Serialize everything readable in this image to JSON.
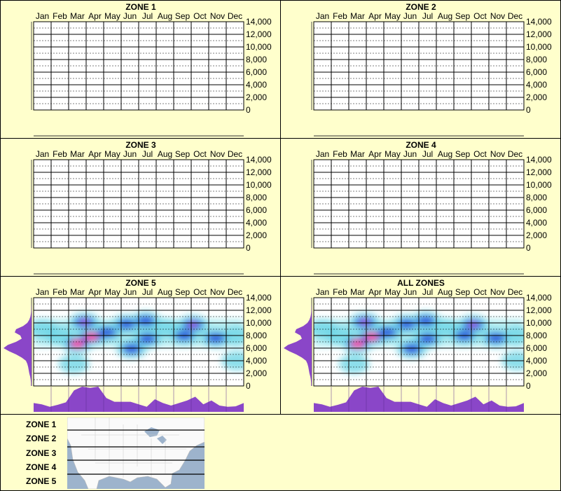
{
  "chart_data": [
    {
      "type": "heatmap",
      "title": "ZONE 1",
      "months": [
        "Jan",
        "Feb",
        "Mar",
        "Apr",
        "May",
        "Jun",
        "Jul",
        "Aug",
        "Sep",
        "Oct",
        "Nov",
        "Dec"
      ],
      "yticks": [
        "0",
        "2,000",
        "4,000",
        "6,000",
        "8,000",
        "10,000",
        "12,000",
        "14,000"
      ],
      "ylim": [
        0,
        14000
      ],
      "hotspots": [],
      "left_profile": [],
      "bottom_profile": []
    },
    {
      "type": "heatmap",
      "title": "ZONE 2",
      "months": [
        "Jan",
        "Feb",
        "Mar",
        "Apr",
        "May",
        "Jun",
        "Jul",
        "Aug",
        "Sep",
        "Oct",
        "Nov",
        "Dec"
      ],
      "yticks": [
        "0",
        "2,000",
        "4,000",
        "6,000",
        "8,000",
        "10,000",
        "12,000",
        "14,000"
      ],
      "ylim": [
        0,
        14000
      ],
      "hotspots": [],
      "left_profile": [],
      "bottom_profile": []
    },
    {
      "type": "heatmap",
      "title": "ZONE 3",
      "months": [
        "Jan",
        "Feb",
        "Mar",
        "Apr",
        "May",
        "Jun",
        "Jul",
        "Aug",
        "Sep",
        "Oct",
        "Nov",
        "Dec"
      ],
      "yticks": [
        "0",
        "2,000",
        "4,000",
        "6,000",
        "8,000",
        "10,000",
        "12,000",
        "14,000"
      ],
      "ylim": [
        0,
        14000
      ],
      "hotspots": [],
      "left_profile": [],
      "bottom_profile": []
    },
    {
      "type": "heatmap",
      "title": "ZONE 4",
      "months": [
        "Jan",
        "Feb",
        "Mar",
        "Apr",
        "May",
        "Jun",
        "Jul",
        "Aug",
        "Sep",
        "Oct",
        "Nov",
        "Dec"
      ],
      "yticks": [
        "0",
        "2,000",
        "4,000",
        "6,000",
        "8,000",
        "10,000",
        "12,000",
        "14,000"
      ],
      "ylim": [
        0,
        14000
      ],
      "hotspots": [],
      "left_profile": [],
      "bottom_profile": []
    },
    {
      "type": "heatmap",
      "title": "ZONE 5",
      "months": [
        "Jan",
        "Feb",
        "Mar",
        "Apr",
        "May",
        "Jun",
        "Jul",
        "Aug",
        "Sep",
        "Oct",
        "Nov",
        "Dec"
      ],
      "yticks": [
        "0",
        "2,000",
        "4,000",
        "6,000",
        "8,000",
        "10,000",
        "12,000",
        "14,000"
      ],
      "ylim": [
        0,
        14000
      ],
      "hotspots": [
        {
          "m": 2.9,
          "v": 10100,
          "i": 0.85
        },
        {
          "m": 2.5,
          "v": 6700,
          "i": 1.0
        },
        {
          "m": 3.3,
          "v": 7800,
          "i": 1.0
        },
        {
          "m": 9.1,
          "v": 9700,
          "i": 0.85
        },
        {
          "m": 10.4,
          "v": 7600,
          "i": 0.7
        },
        {
          "m": 6.4,
          "v": 10300,
          "i": 0.6
        },
        {
          "m": 5.6,
          "v": 5900,
          "i": 0.55
        },
        {
          "m": 5.3,
          "v": 9800,
          "i": 0.5
        },
        {
          "m": 8.6,
          "v": 8000,
          "i": 0.5
        },
        {
          "m": 4.2,
          "v": 8500,
          "i": 0.5
        },
        {
          "m": 1.5,
          "v": 8000,
          "i": 0.4
        },
        {
          "m": 7.5,
          "v": 9200,
          "i": 0.4
        },
        {
          "m": 11.6,
          "v": 8000,
          "i": 0.4
        },
        {
          "m": 0.5,
          "v": 9000,
          "i": 0.35
        },
        {
          "m": 11.6,
          "v": 4000,
          "i": 0.25
        },
        {
          "m": 2.3,
          "v": 3500,
          "i": 0.25
        },
        {
          "m": 6.5,
          "v": 7500,
          "i": 0.45
        }
      ],
      "left_profile": [
        0.02,
        0.02,
        0.03,
        0.05,
        0.08,
        0.1,
        0.12,
        0.15,
        0.2,
        0.35,
        0.55,
        0.8,
        1.0,
        0.85,
        0.55,
        0.35,
        0.4,
        0.6,
        0.55,
        0.3,
        0.15,
        0.08,
        0.04,
        0.02,
        0.01,
        0.01,
        0,
        0,
        0
      ],
      "bottom_profile": [
        0.35,
        0.3,
        0.2,
        0.28,
        0.38,
        0.85,
        1.0,
        0.95,
        1.0,
        0.55,
        0.4,
        0.4,
        0.4,
        0.3,
        0.2,
        0.5,
        0.35,
        0.25,
        0.35,
        0.45,
        0.6,
        0.3,
        0.45,
        0.25,
        0.2,
        0.22,
        0.35
      ]
    },
    {
      "type": "heatmap",
      "title": "ALL ZONES",
      "months": [
        "Jan",
        "Feb",
        "Mar",
        "Apr",
        "May",
        "Jun",
        "Jul",
        "Aug",
        "Sep",
        "Oct",
        "Nov",
        "Dec"
      ],
      "yticks": [
        "0",
        "2,000",
        "4,000",
        "6,000",
        "8,000",
        "10,000",
        "12,000",
        "14,000"
      ],
      "ylim": [
        0,
        14000
      ],
      "hotspots": [
        {
          "m": 2.9,
          "v": 10100,
          "i": 0.85
        },
        {
          "m": 2.5,
          "v": 6700,
          "i": 1.0
        },
        {
          "m": 3.3,
          "v": 7800,
          "i": 1.0
        },
        {
          "m": 9.1,
          "v": 9700,
          "i": 0.85
        },
        {
          "m": 10.4,
          "v": 7600,
          "i": 0.7
        },
        {
          "m": 6.4,
          "v": 10300,
          "i": 0.6
        },
        {
          "m": 5.6,
          "v": 5900,
          "i": 0.55
        },
        {
          "m": 5.3,
          "v": 9800,
          "i": 0.5
        },
        {
          "m": 8.6,
          "v": 8000,
          "i": 0.5
        },
        {
          "m": 4.2,
          "v": 8500,
          "i": 0.5
        },
        {
          "m": 1.5,
          "v": 8000,
          "i": 0.4
        },
        {
          "m": 7.5,
          "v": 9200,
          "i": 0.4
        },
        {
          "m": 11.6,
          "v": 8000,
          "i": 0.4
        },
        {
          "m": 0.5,
          "v": 9000,
          "i": 0.35
        },
        {
          "m": 11.6,
          "v": 4000,
          "i": 0.25
        },
        {
          "m": 2.3,
          "v": 3500,
          "i": 0.25
        },
        {
          "m": 6.5,
          "v": 7500,
          "i": 0.45
        }
      ],
      "left_profile": [
        0.02,
        0.02,
        0.03,
        0.05,
        0.08,
        0.1,
        0.12,
        0.15,
        0.2,
        0.35,
        0.55,
        0.8,
        1.0,
        0.85,
        0.55,
        0.35,
        0.4,
        0.6,
        0.55,
        0.3,
        0.15,
        0.08,
        0.04,
        0.02,
        0.01,
        0.01,
        0,
        0,
        0
      ],
      "bottom_profile": [
        0.35,
        0.3,
        0.2,
        0.28,
        0.38,
        0.85,
        1.0,
        0.95,
        1.0,
        0.55,
        0.4,
        0.4,
        0.4,
        0.3,
        0.2,
        0.5,
        0.35,
        0.25,
        0.35,
        0.45,
        0.6,
        0.3,
        0.45,
        0.25,
        0.2,
        0.22,
        0.35
      ]
    }
  ],
  "legend": {
    "zones": [
      "ZONE 1",
      "ZONE 2",
      "ZONE 3",
      "ZONE 4",
      "ZONE 5"
    ]
  },
  "colors": {
    "panel_bg": "#ffffcc",
    "profile": "#8a46c8",
    "cyan": "#5fd0e0",
    "blue": "#1030d0",
    "magenta": "#ff20a0",
    "map_water": "#9db3cc"
  }
}
